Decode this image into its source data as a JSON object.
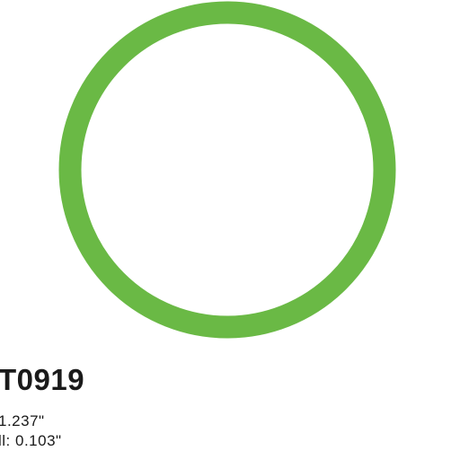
{
  "product": {
    "ring_color": "#6ab945",
    "part_number": "T0919",
    "specs": [
      {
        "text": " 1.237\""
      },
      {
        "text": "ll: 0.103\""
      }
    ]
  }
}
